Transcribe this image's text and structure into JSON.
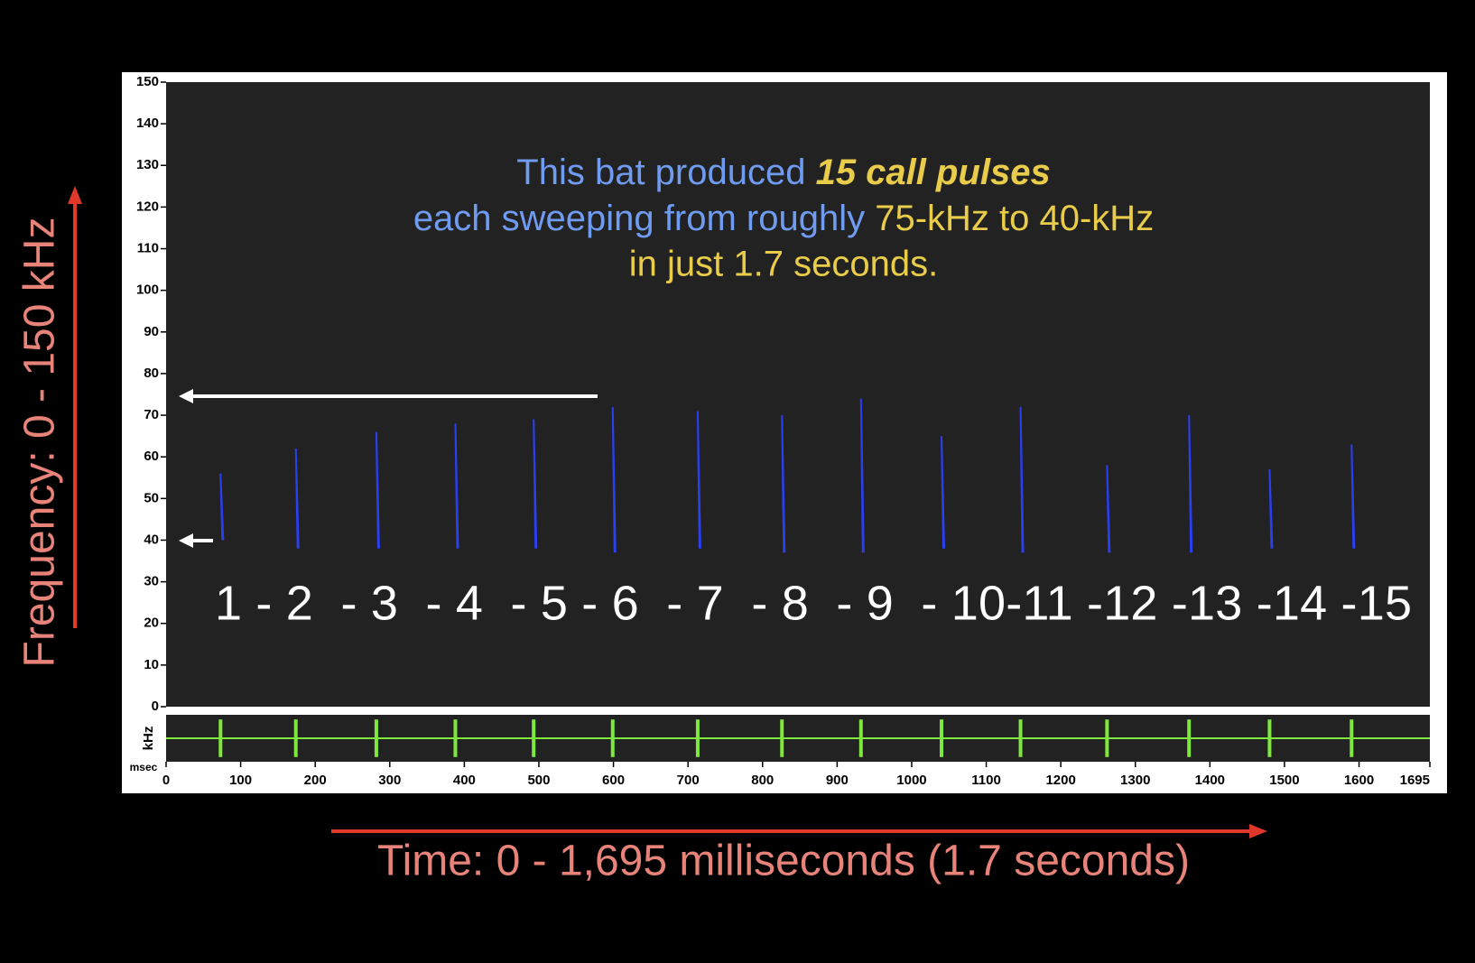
{
  "chart_data": {
    "type": "spectrogram",
    "title_line1": [
      "This bat produced ",
      "15 call pulses"
    ],
    "title_line2": [
      "each sweeping from roughly ",
      "75-kHz to 40-kHz"
    ],
    "title_line3": "in just 1.7 seconds.",
    "pulse_labels": "1 - 2  - 3  - 4  - 5 - 6  - 7  - 8  - 9  - 10-11 -12 -13 -14 -15",
    "y_label": "Frequency: 0 - 150 kHz",
    "x_label": "Time: 0 - 1,695 milliseconds (1.7 seconds)",
    "wave_y_label": "kHz",
    "x_unit": "msec",
    "ylim": [
      0,
      150
    ],
    "yticks": [
      0,
      10,
      20,
      30,
      40,
      50,
      60,
      70,
      80,
      90,
      100,
      110,
      120,
      130,
      140,
      150
    ],
    "xlim": [
      0,
      1695
    ],
    "xticks": [
      0,
      100,
      200,
      300,
      400,
      500,
      600,
      700,
      800,
      900,
      1000,
      1100,
      1200,
      1300,
      1400,
      1500,
      1600,
      1695
    ],
    "color": "#2b3ff2",
    "wave_color": "#7ee83c",
    "pulses": {
      "x": [
        73,
        174,
        282,
        388,
        493,
        599,
        713,
        826,
        932,
        1040,
        1146,
        1262,
        1372,
        1480,
        1590
      ],
      "top": [
        56,
        62,
        66,
        68,
        69,
        72,
        71,
        70,
        74,
        65,
        72,
        58,
        70,
        57,
        63
      ],
      "bottom": [
        40,
        38,
        38,
        38,
        38,
        37,
        38,
        37,
        37,
        38,
        37,
        37,
        37,
        38,
        38
      ]
    }
  }
}
